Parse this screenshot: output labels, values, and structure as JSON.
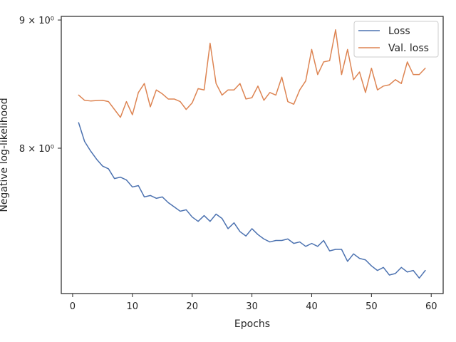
{
  "chart_data": {
    "type": "line",
    "xlabel": "Epochs",
    "ylabel": "Negative log-likelihood",
    "yscale": "log",
    "xlim": [
      -1.9,
      62
    ],
    "ylim": [
      7.0,
      9.03
    ],
    "xticks": [
      0,
      10,
      20,
      30,
      40,
      50,
      60
    ],
    "yticks": [
      {
        "value": 8.0,
        "label": "8 × 10⁰"
      },
      {
        "value": 9.0,
        "label": "9 × 10⁰"
      }
    ],
    "grid": false,
    "legend": "top-right",
    "x": [
      1,
      2,
      3,
      4,
      5,
      6,
      7,
      8,
      9,
      10,
      11,
      12,
      13,
      14,
      15,
      16,
      17,
      18,
      19,
      20,
      21,
      22,
      23,
      24,
      25,
      26,
      27,
      28,
      29,
      30,
      31,
      32,
      33,
      34,
      35,
      36,
      37,
      38,
      39,
      40,
      41,
      42,
      43,
      44,
      45,
      46,
      47,
      48,
      49,
      50,
      51,
      52,
      53,
      54,
      55,
      56,
      57,
      58,
      59
    ],
    "series": [
      {
        "name": "Loss",
        "color": "#4c72b0",
        "values": [
          8.19,
          8.05,
          7.98,
          7.92,
          7.87,
          7.85,
          7.78,
          7.79,
          7.77,
          7.72,
          7.73,
          7.65,
          7.66,
          7.64,
          7.65,
          7.61,
          7.58,
          7.55,
          7.56,
          7.51,
          7.48,
          7.52,
          7.48,
          7.53,
          7.5,
          7.43,
          7.47,
          7.41,
          7.38,
          7.43,
          7.39,
          7.36,
          7.34,
          7.35,
          7.35,
          7.36,
          7.33,
          7.34,
          7.31,
          7.33,
          7.31,
          7.35,
          7.28,
          7.29,
          7.29,
          7.21,
          7.26,
          7.23,
          7.22,
          7.18,
          7.15,
          7.17,
          7.12,
          7.13,
          7.17,
          7.14,
          7.15,
          7.1,
          7.15
        ]
      },
      {
        "name": "Val. loss",
        "color": "#dd8452",
        "values": [
          8.4,
          8.36,
          8.355,
          8.358,
          8.36,
          8.35,
          8.29,
          8.23,
          8.35,
          8.25,
          8.42,
          8.49,
          8.31,
          8.44,
          8.41,
          8.37,
          8.37,
          8.35,
          8.29,
          8.34,
          8.45,
          8.44,
          8.81,
          8.49,
          8.4,
          8.44,
          8.44,
          8.49,
          8.37,
          8.38,
          8.47,
          8.36,
          8.42,
          8.4,
          8.54,
          8.35,
          8.33,
          8.44,
          8.51,
          8.76,
          8.56,
          8.66,
          8.67,
          8.92,
          8.56,
          8.76,
          8.52,
          8.58,
          8.42,
          8.61,
          8.44,
          8.47,
          8.48,
          8.52,
          8.49,
          8.66,
          8.56,
          8.56,
          8.61
        ]
      }
    ]
  }
}
